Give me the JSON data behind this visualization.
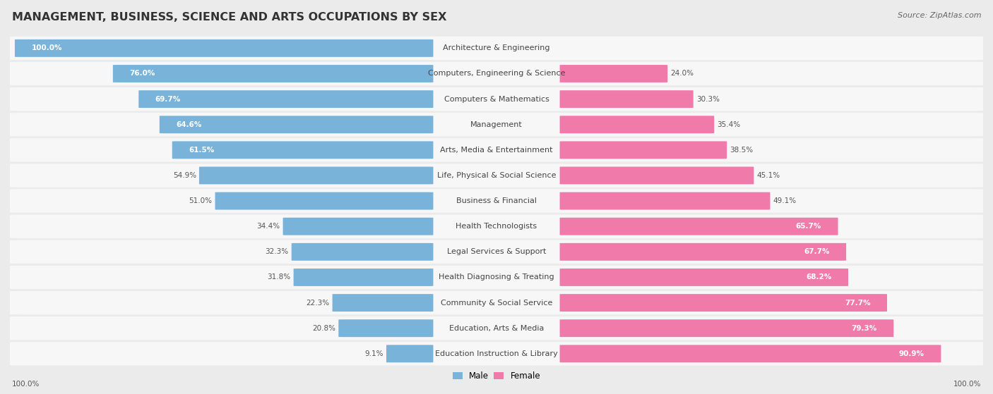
{
  "title": "MANAGEMENT, BUSINESS, SCIENCE AND ARTS OCCUPATIONS BY SEX",
  "source": "Source: ZipAtlas.com",
  "categories": [
    "Architecture & Engineering",
    "Computers, Engineering & Science",
    "Computers & Mathematics",
    "Management",
    "Arts, Media & Entertainment",
    "Life, Physical & Social Science",
    "Business & Financial",
    "Health Technologists",
    "Legal Services & Support",
    "Health Diagnosing & Treating",
    "Community & Social Service",
    "Education, Arts & Media",
    "Education Instruction & Library"
  ],
  "male_pct": [
    100.0,
    76.0,
    69.7,
    64.6,
    61.5,
    54.9,
    51.0,
    34.4,
    32.3,
    31.8,
    22.3,
    20.8,
    9.1
  ],
  "female_pct": [
    0.0,
    24.0,
    30.3,
    35.4,
    38.5,
    45.1,
    49.1,
    65.7,
    67.7,
    68.2,
    77.7,
    79.3,
    90.9
  ],
  "male_color": "#7ab3d9",
  "female_color": "#f07bab",
  "bg_color": "#ebebeb",
  "row_bg_color": "#f7f7f7",
  "title_fontsize": 11.5,
  "label_fontsize": 8.0,
  "pct_fontsize": 7.5,
  "legend_fontsize": 8.5,
  "source_fontsize": 8.0
}
